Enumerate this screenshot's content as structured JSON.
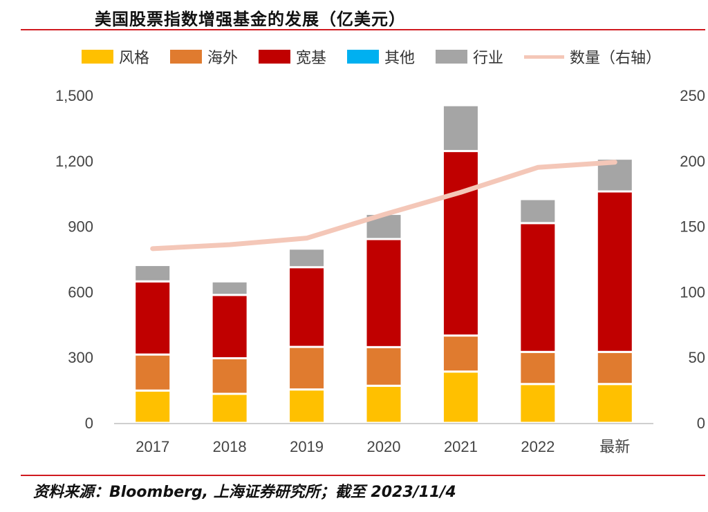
{
  "page": {
    "title": "美国股票指数增强基金的发展（亿美元）",
    "source": "资料来源：Bloomberg, 上海证券研究所；截至 2023/11/4"
  },
  "colors": {
    "风格": "#ffc000",
    "海外": "#e07b2f",
    "宽基": "#c00000",
    "其他": "#00b0f0",
    "行业": "#a5a5a5",
    "数量": "#f4c7b8",
    "rule": "#d0191f"
  },
  "chart_data": {
    "type": "bar",
    "stacked": true,
    "title": "美国股票指数增强基金的发展（亿美元）",
    "categories": [
      "2017",
      "2018",
      "2019",
      "2020",
      "2021",
      "2022",
      "最新"
    ],
    "series": [
      {
        "name": "风格",
        "axis": "left",
        "values": [
          148,
          133,
          153,
          170,
          235,
          178,
          178
        ]
      },
      {
        "name": "海外",
        "axis": "left",
        "values": [
          165,
          163,
          195,
          177,
          165,
          147,
          147
        ]
      },
      {
        "name": "宽基",
        "axis": "left",
        "values": [
          335,
          290,
          365,
          495,
          845,
          590,
          735
        ]
      },
      {
        "name": "其他",
        "axis": "left",
        "values": [
          0,
          0,
          0,
          0,
          0,
          0,
          0
        ]
      },
      {
        "name": "行业",
        "axis": "left",
        "values": [
          75,
          62,
          85,
          115,
          210,
          110,
          150
        ]
      }
    ],
    "line_series": {
      "name": "数量（右轴）",
      "axis": "right",
      "values": [
        133,
        136,
        141,
        159,
        176,
        195,
        199
      ]
    },
    "y_left": {
      "min": 0,
      "max": 1500,
      "ticks": [
        "0",
        "300",
        "600",
        "900",
        "1,200",
        "1,500"
      ]
    },
    "y_right": {
      "min": 0,
      "max": 250,
      "ticks": [
        "0",
        "50",
        "100",
        "150",
        "200",
        "250"
      ]
    },
    "legend": [
      "风格",
      "海外",
      "宽基",
      "其他",
      "行业",
      "数量（右轴）"
    ],
    "legend_position": "top"
  }
}
